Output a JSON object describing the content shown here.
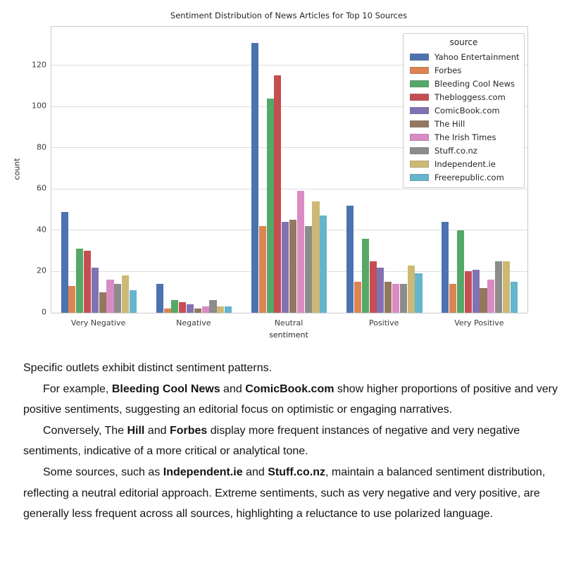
{
  "chart_data": {
    "type": "bar",
    "title": "Sentiment Distribution of News Articles for Top 10 Sources",
    "xlabel": "sentiment",
    "ylabel": "count",
    "legend_title": "source",
    "legend_position": "upper right",
    "grid": true,
    "categories": [
      "Very Negative",
      "Negative",
      "Neutral",
      "Positive",
      "Very Positive"
    ],
    "yticks": [
      0,
      20,
      40,
      60,
      80,
      100,
      120
    ],
    "ylim": [
      0,
      138.7
    ],
    "series": [
      {
        "name": "Yahoo Entertainment",
        "color": "#4C72B0",
        "values": [
          49,
          14,
          131,
          52,
          44
        ]
      },
      {
        "name": "Forbes",
        "color": "#DD8452",
        "values": [
          13,
          2,
          42,
          15,
          14
        ]
      },
      {
        "name": "Bleeding Cool News",
        "color": "#55A868",
        "values": [
          31,
          6,
          104,
          36,
          40
        ]
      },
      {
        "name": "Thebloggess.com",
        "color": "#C44E52",
        "values": [
          30,
          5,
          115,
          25,
          20
        ]
      },
      {
        "name": "ComicBook.com",
        "color": "#8172B3",
        "values": [
          22,
          4,
          44,
          22,
          21
        ]
      },
      {
        "name": "The Hill",
        "color": "#937860",
        "values": [
          10,
          2,
          45,
          15,
          12
        ]
      },
      {
        "name": "The Irish Times",
        "color": "#DA8BC3",
        "values": [
          16,
          3,
          59,
          14,
          16
        ]
      },
      {
        "name": "Stuff.co.nz",
        "color": "#8C8C8C",
        "values": [
          14,
          6,
          42,
          14,
          25
        ]
      },
      {
        "name": "Independent.ie",
        "color": "#CCB974",
        "values": [
          18,
          3,
          54,
          23,
          25
        ]
      },
      {
        "name": "Freerepublic.com",
        "color": "#64B5CD",
        "values": [
          11,
          3,
          47,
          19,
          15
        ]
      }
    ]
  },
  "commentary": {
    "paragraphs": [
      {
        "indent": false,
        "segments": [
          {
            "text": "Specific outlets exhibit distinct sentiment patterns.",
            "bold": false
          }
        ]
      },
      {
        "indent": true,
        "segments": [
          {
            "text": "For example, ",
            "bold": false
          },
          {
            "text": "Bleeding Cool News",
            "bold": true
          },
          {
            "text": " and ",
            "bold": false
          },
          {
            "text": "ComicBook.com",
            "bold": true
          },
          {
            "text": " show higher proportions of positive and very positive sentiments, suggesting an editorial focus on optimistic or engaging narratives.",
            "bold": false
          }
        ]
      },
      {
        "indent": true,
        "segments": [
          {
            "text": "Conversely, The ",
            "bold": false
          },
          {
            "text": "Hill",
            "bold": true
          },
          {
            "text": " and ",
            "bold": false
          },
          {
            "text": "Forbes",
            "bold": true
          },
          {
            "text": " display more frequent instances of negative and very negative sentiments, indicative of a more critical or analytical tone.",
            "bold": false
          }
        ]
      },
      {
        "indent": true,
        "segments": [
          {
            "text": "Some sources, such as ",
            "bold": false
          },
          {
            "text": "Independent.ie",
            "bold": true
          },
          {
            "text": " and ",
            "bold": false
          },
          {
            "text": "Stuff.co.nz",
            "bold": true
          },
          {
            "text": ", maintain a balanced sentiment distribution, reflecting a neutral editorial approach. Extreme sentiments, such as very negative and very positive, are generally less frequent across all sources, highlighting a reluctance to use polarized language.",
            "bold": false
          }
        ]
      }
    ]
  }
}
